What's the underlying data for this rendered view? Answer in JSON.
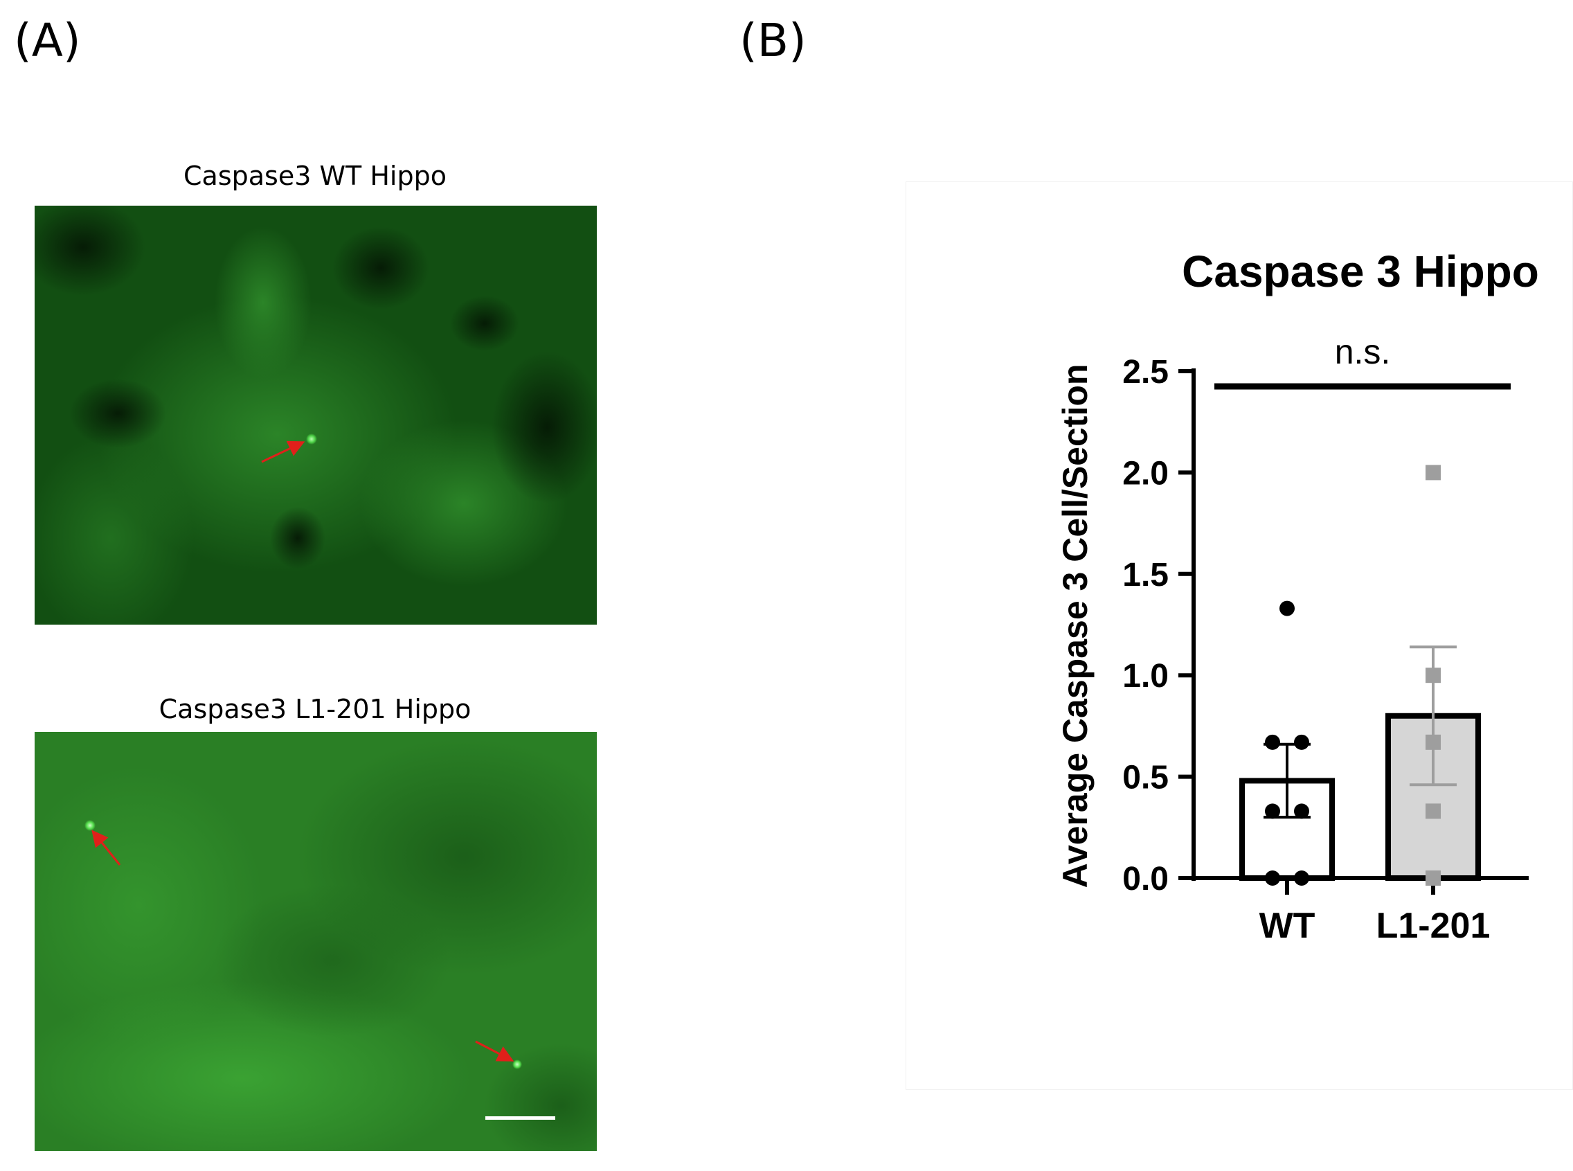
{
  "figure": {
    "panel_a_label": "(A)",
    "panel_b_label": "(B)",
    "micrographs": [
      {
        "title": "Caspase3  WT Hippo"
      },
      {
        "title": "Caspase3  L1-201 Hippo"
      }
    ],
    "colors": {
      "wt_bar_fill": "#ffffff",
      "l1_bar_fill": "#d6d6d6",
      "wt_points": "#000000",
      "l1_points": "#9e9e9e",
      "arrow": "#e0201a",
      "fluorescence": "#2fa82a"
    }
  },
  "chart_data": {
    "type": "bar",
    "title": "Caspase 3 Hippo",
    "ylabel": "Average Caspase 3 Cell/Section",
    "xlabel": "",
    "categories": [
      "WT",
      "L1-201"
    ],
    "means": [
      0.48,
      0.8
    ],
    "sem": [
      0.18,
      0.34
    ],
    "points": [
      [
        1.33,
        0.67,
        0.67,
        0.33,
        0.33,
        0.0,
        0.0
      ],
      [
        2.0,
        1.0,
        0.67,
        0.33,
        0.0
      ]
    ],
    "ylim": [
      0,
      2.5
    ],
    "yticks": [
      "0.0",
      "0.5",
      "1.0",
      "1.5",
      "2.0",
      "2.5"
    ],
    "significance": "n.s.",
    "grid": false
  }
}
